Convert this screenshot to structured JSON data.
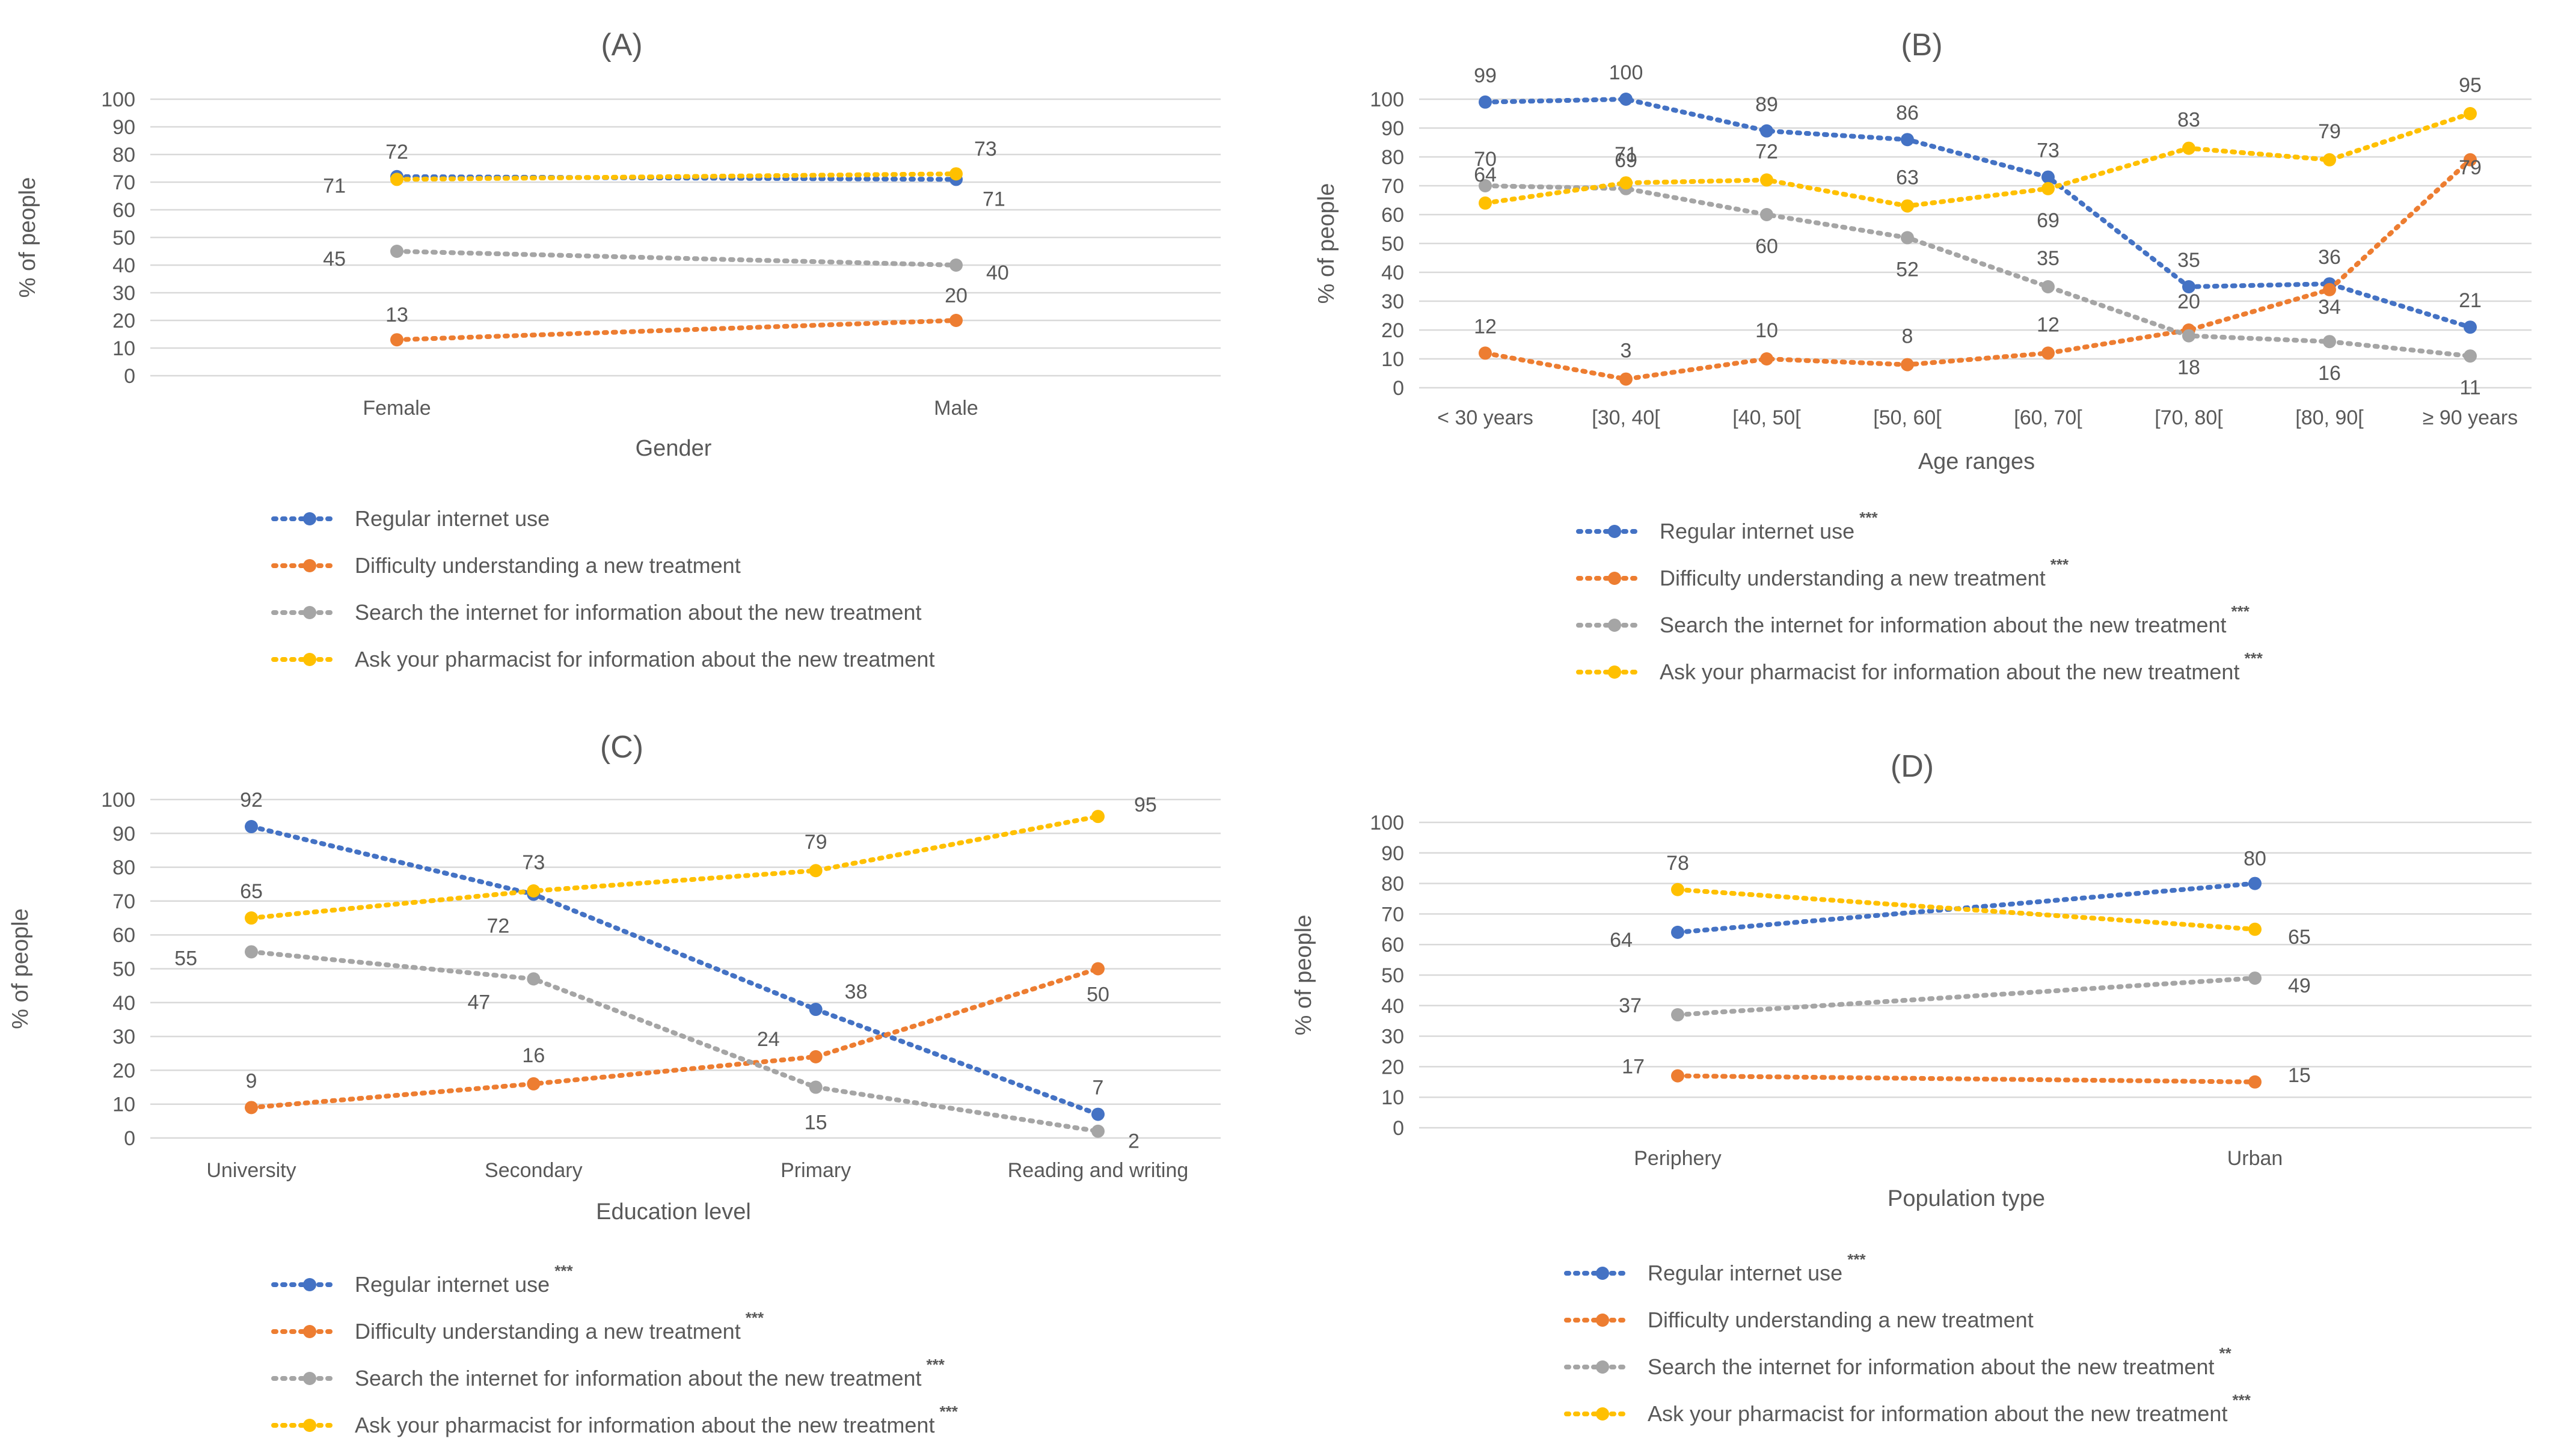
{
  "colors": {
    "regular": "#4472c4",
    "difficulty": "#ed7d31",
    "search": "#a5a5a5",
    "pharmacist": "#ffc000"
  },
  "chart_data": [
    {
      "id": "A",
      "type": "line",
      "title": "(A)",
      "xlabel": "Gender",
      "ylabel": "% of people",
      "ylim": [
        0,
        100
      ],
      "yticks": [
        "0",
        "10",
        "20",
        "30",
        "40",
        "50",
        "60",
        "70",
        "80",
        "90",
        "100"
      ],
      "categories": [
        "Female",
        "Male"
      ],
      "series": [
        {
          "key": "regular",
          "name": "Regular internet use",
          "sig": "",
          "values": [
            72,
            71
          ],
          "labels": [
            "72",
            "71"
          ]
        },
        {
          "key": "difficulty",
          "name": "Difficulty understanding a new treatment",
          "sig": "",
          "values": [
            13,
            20
          ],
          "labels": [
            "13",
            "20"
          ]
        },
        {
          "key": "search",
          "name": "Search the internet for information about the new treatment",
          "sig": "",
          "values": [
            45,
            40
          ],
          "labels": [
            "45",
            "40"
          ]
        },
        {
          "key": "pharmacist",
          "name": "Ask your pharmacist for information about the new treatment",
          "sig": "",
          "values": [
            71,
            73
          ],
          "labels": [
            "71",
            "73"
          ]
        }
      ]
    },
    {
      "id": "B",
      "type": "line",
      "title": "(B)",
      "xlabel": "Age ranges",
      "ylabel": "% of people",
      "ylim": [
        0,
        100
      ],
      "yticks": [
        "0",
        "10",
        "20",
        "30",
        "40",
        "50",
        "60",
        "70",
        "80",
        "90",
        "100"
      ],
      "categories": [
        "< 30 years",
        "[30, 40[",
        "[40, 50[",
        "[50, 60[",
        "[60, 70[",
        "[70, 80[",
        "[80, 90[",
        "≥ 90 years"
      ],
      "series": [
        {
          "key": "regular",
          "name": "Regular internet use",
          "sig": "***",
          "values": [
            99,
            100,
            89,
            86,
            73,
            35,
            36,
            21
          ],
          "labels": [
            "99",
            "100",
            "89",
            "86",
            "73",
            "35",
            "36",
            "21"
          ]
        },
        {
          "key": "difficulty",
          "name": "Difficulty understanding a new treatment",
          "sig": "***",
          "values": [
            12,
            3,
            10,
            8,
            12,
            20,
            34,
            79
          ],
          "labels": [
            "12",
            "3",
            "10",
            "8",
            "12",
            "20",
            "34",
            "79"
          ]
        },
        {
          "key": "search",
          "name": "Search the internet for information about the new treatment",
          "sig": "***",
          "values": [
            70,
            69,
            60,
            52,
            35,
            18,
            16,
            11
          ],
          "labels": [
            "70",
            "69",
            "60",
            "52",
            "35",
            "18",
            "16",
            "11"
          ]
        },
        {
          "key": "pharmacist",
          "name": "Ask your pharmacist for information about the new treatment",
          "sig": "***",
          "values": [
            64,
            71,
            72,
            63,
            69,
            83,
            79,
            95
          ],
          "labels": [
            "64",
            "71",
            "72",
            "63",
            "69",
            "83",
            "79",
            "95"
          ]
        }
      ]
    },
    {
      "id": "C",
      "type": "line",
      "title": "(C)",
      "xlabel": "Education level",
      "ylabel": "% of people",
      "ylim": [
        0,
        100
      ],
      "yticks": [
        "0",
        "10",
        "20",
        "30",
        "40",
        "50",
        "60",
        "70",
        "80",
        "90",
        "100"
      ],
      "categories": [
        "University",
        "Secondary",
        "Primary",
        "Reading and writing"
      ],
      "series": [
        {
          "key": "regular",
          "name": "Regular internet use",
          "sig": "***",
          "values": [
            92,
            72,
            38,
            7
          ],
          "labels": [
            "92",
            "72",
            "38",
            "7"
          ]
        },
        {
          "key": "difficulty",
          "name": "Difficulty understanding a new treatment",
          "sig": "***",
          "values": [
            9,
            16,
            24,
            50
          ],
          "labels": [
            "9",
            "16",
            "24",
            "50"
          ]
        },
        {
          "key": "search",
          "name": "Search the internet for information about the new treatment",
          "sig": "***",
          "values": [
            55,
            47,
            15,
            2
          ],
          "labels": [
            "55",
            "47",
            "15",
            "2"
          ]
        },
        {
          "key": "pharmacist",
          "name": "Ask your pharmacist for information about the new treatment",
          "sig": "***",
          "values": [
            65,
            73,
            79,
            95
          ],
          "labels": [
            "65",
            "73",
            "79",
            "95"
          ]
        }
      ]
    },
    {
      "id": "D",
      "type": "line",
      "title": "(D)",
      "xlabel": "Population type",
      "ylabel": "% of people",
      "ylim": [
        0,
        100
      ],
      "yticks": [
        "0",
        "10",
        "20",
        "30",
        "40",
        "50",
        "60",
        "70",
        "80",
        "90",
        "100"
      ],
      "categories": [
        "Periphery",
        "Urban"
      ],
      "series": [
        {
          "key": "regular",
          "name": "Regular internet use",
          "sig": "***",
          "values": [
            64,
            80
          ],
          "labels": [
            "64",
            "80"
          ]
        },
        {
          "key": "difficulty",
          "name": "Difficulty understanding a new treatment",
          "sig": "",
          "values": [
            17,
            15
          ],
          "labels": [
            "17",
            "15"
          ]
        },
        {
          "key": "search",
          "name": "Search the internet for information about the new treatment",
          "sig": "**",
          "values": [
            37,
            49
          ],
          "labels": [
            "37",
            "49"
          ]
        },
        {
          "key": "pharmacist",
          "name": "Ask your pharmacist for information about the new treatment",
          "sig": "***",
          "values": [
            78,
            65
          ],
          "labels": [
            "78",
            "65"
          ]
        }
      ]
    }
  ]
}
